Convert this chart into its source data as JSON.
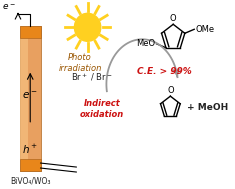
{
  "bg_color": "#ffffff",
  "bivo4_label": "BiVO₄/WO₃",
  "photo_text": "Photo\nirradiation",
  "electron_label_inner": "e⁻",
  "hole_label_inner": "h⁺",
  "br_label": "Br⁺ / Br⁻",
  "indirect_label": "Indirect\noxidation",
  "ce_label": "C.E. > 99%",
  "meoh_label": "+ MeOH",
  "arrow_color": "#999999",
  "red_color": "#CC1111",
  "text_color": "#222222",
  "electrode_body": "#E8A060",
  "electrode_highlight": "#F5C080",
  "electrode_cap": "#E8861A",
  "electrode_border": "#B06820",
  "sun_color": "#FFD020",
  "sun_ray_color": "#FFD020",
  "photo_color": "#995500"
}
